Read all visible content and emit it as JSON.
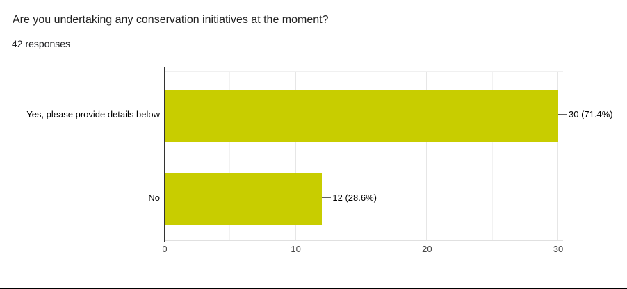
{
  "header": {
    "title": "Are you undertaking any conservation initiatives at the moment?",
    "responses": "42 responses"
  },
  "chart_data": {
    "type": "bar",
    "orientation": "horizontal",
    "title": "Are you undertaking any conservation initiatives at the moment?",
    "subtitle": "42 responses",
    "categories": [
      "Yes, please provide details below",
      "No"
    ],
    "values": [
      30,
      12
    ],
    "percentages": [
      71.4,
      28.6
    ],
    "value_labels": [
      "30 (71.4%)",
      "12 (28.6%)"
    ],
    "total_responses": 42,
    "xlabel": "",
    "ylabel": "",
    "xlim": [
      0,
      30
    ],
    "x_ticks": [
      0,
      10,
      20,
      30
    ],
    "gridline_values": [
      5,
      10,
      15,
      20,
      25,
      30
    ],
    "grid": true,
    "legend": "none",
    "bar_color": "#c8cd00"
  },
  "colors": {
    "bar": "#c8cd00",
    "axis_line": "#333333",
    "major_gridline": "#e6e6e6",
    "minor_gridline": "#f2f2f2",
    "title_text": "#212121",
    "label_text": "#000000",
    "tick_text": "#444444",
    "stem": "#616161",
    "bottom_border": "#000000"
  }
}
